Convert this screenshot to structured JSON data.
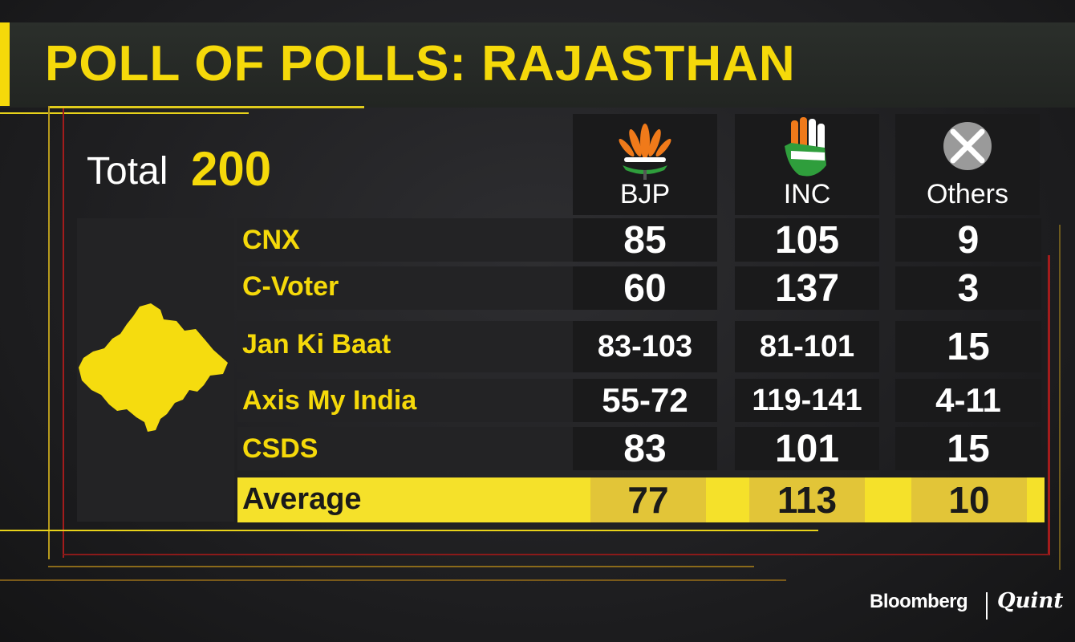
{
  "title": "POLL OF POLLS: RAJASTHAN",
  "total": {
    "label": "Total",
    "value": "200"
  },
  "parties": [
    {
      "name": "BJP",
      "icon": "lotus-icon"
    },
    {
      "name": "INC",
      "icon": "hand-icon"
    },
    {
      "name": "Others",
      "icon": "cross-icon"
    }
  ],
  "polls": [
    {
      "name": "CNX",
      "values": [
        "85",
        "105",
        "9"
      ]
    },
    {
      "name": "C-Voter",
      "values": [
        "60",
        "137",
        "3"
      ]
    },
    {
      "name": "Jan Ki Baat",
      "values": [
        "83-103",
        "81-101",
        "15"
      ]
    },
    {
      "name": "Axis My India",
      "values": [
        "55-72",
        "119-141",
        "4-11"
      ]
    },
    {
      "name": "CSDS",
      "values": [
        "83",
        "101",
        "15"
      ]
    }
  ],
  "average": {
    "label": "Average",
    "values": [
      "77",
      "113",
      "10"
    ]
  },
  "logo": {
    "left": "Bloomberg",
    "right": "Quint"
  },
  "colors": {
    "accent": "#f5d90a",
    "background": "#1f1f21",
    "average_bar": "#f5e12a"
  },
  "chart_data": {
    "type": "table",
    "title": "POLL OF POLLS: RAJASTHAN",
    "total_seats": 200,
    "columns": [
      "BJP",
      "INC",
      "Others"
    ],
    "rows": [
      {
        "poll": "CNX",
        "BJP": "85",
        "INC": "105",
        "Others": "9"
      },
      {
        "poll": "C-Voter",
        "BJP": "60",
        "INC": "137",
        "Others": "3"
      },
      {
        "poll": "Jan Ki Baat",
        "BJP": "83-103",
        "INC": "81-101",
        "Others": "15"
      },
      {
        "poll": "Axis My India",
        "BJP": "55-72",
        "INC": "119-141",
        "Others": "4-11"
      },
      {
        "poll": "CSDS",
        "BJP": "83",
        "INC": "101",
        "Others": "15"
      },
      {
        "poll": "Average",
        "BJP": "77",
        "INC": "113",
        "Others": "10"
      }
    ]
  }
}
